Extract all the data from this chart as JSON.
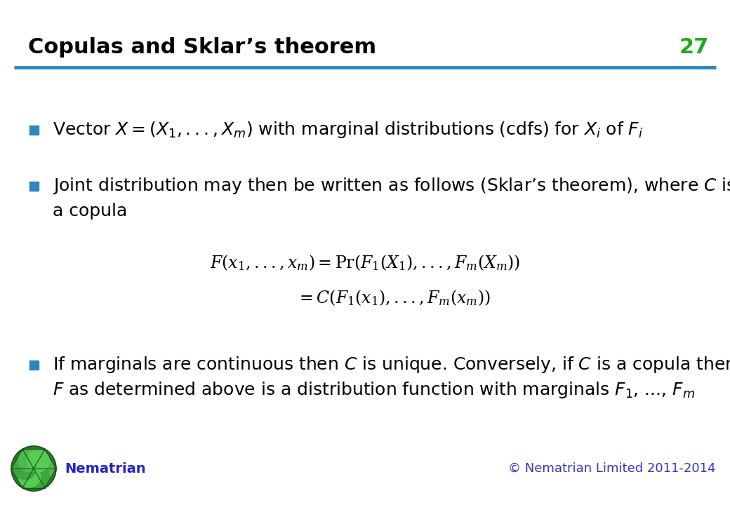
{
  "title": "Copulas and Sklar’s theorem",
  "slide_number": "27",
  "title_color": "#000000",
  "title_fontsize": 22,
  "slide_number_color": "#22aa22",
  "header_line_color": "#2E86C1",
  "background_color": "#ffffff",
  "bullet_color": "#2E86C1",
  "text_color": "#000000",
  "bullet1": "Vector $X = (X_1,..., X_m)$ with marginal distributions (cdfs) for $X_i$ of $F_i$",
  "bullet2_line1": "Joint distribution may then be written as follows (Sklar’s theorem), where $C$ is",
  "bullet2_line2": "a copula",
  "formula1": "$F\\left(x_1,...,x_m\\right) = \\mathrm{Pr}\\left(F_1\\left(X_1\\right),...,F_m\\left(X_m\\right)\\right)$",
  "formula2": "$= C\\left(F_1\\left(x_1\\right),...,F_m\\left(x_m\\right)\\right)$",
  "bullet3_line1": "If marginals are continuous then $C$ is unique. Conversely, if $C$ is a copula then",
  "bullet3_line2": "$F$ as determined above is a distribution function with marginals $F_1$, ..., $F_m$",
  "footer_left": "Nematrian",
  "footer_right": "© Nematrian Limited 2011-2014",
  "footer_color": "#3333cc",
  "nematrian_color": "#2222cc",
  "text_fontsize": 18,
  "formula_fontsize": 16,
  "footer_fontsize": 13
}
